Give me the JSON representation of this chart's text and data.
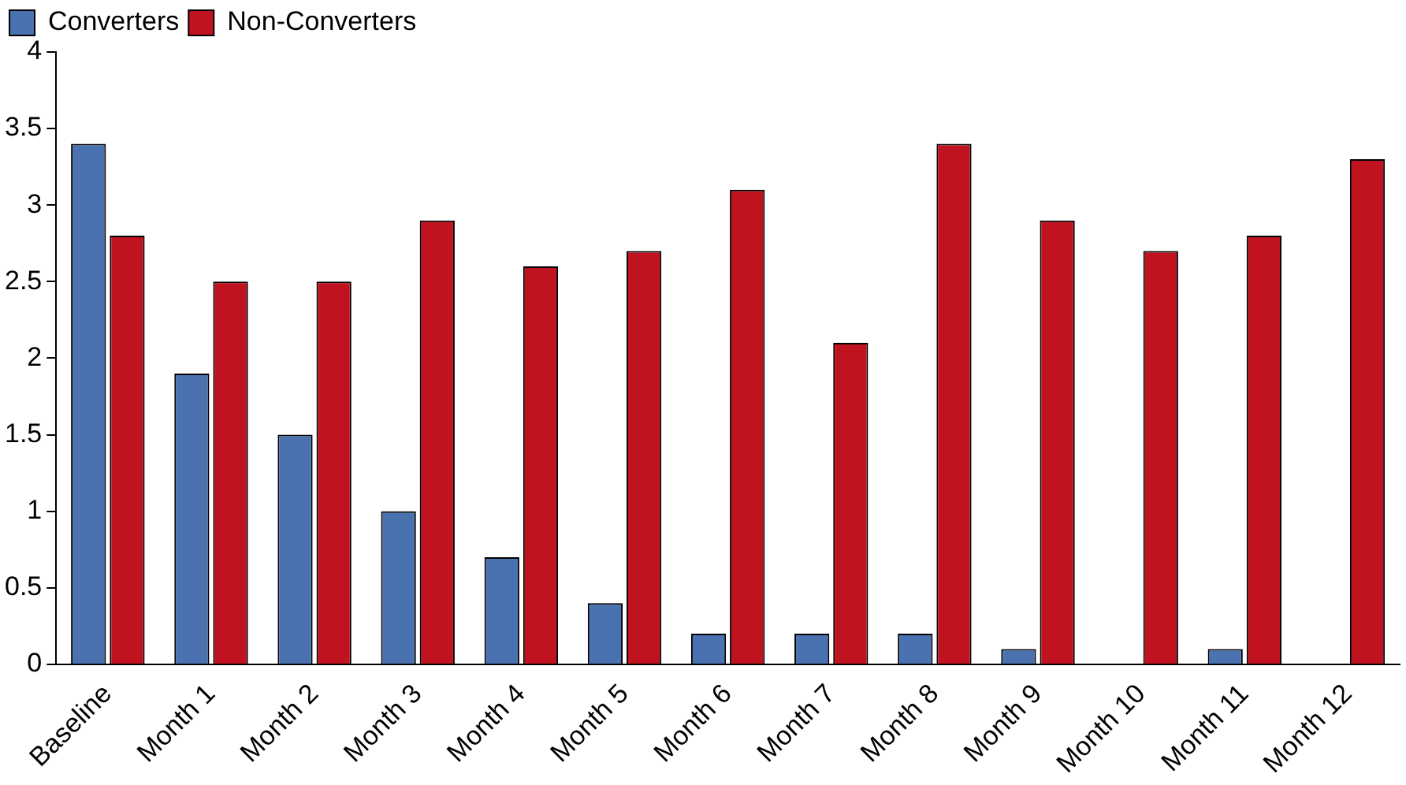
{
  "chart_data": {
    "type": "bar",
    "categories": [
      "Baseline",
      "Month 1",
      "Month 2",
      "Month 3",
      "Month 4",
      "Month 5",
      "Month 6",
      "Month 7",
      "Month 8",
      "Month 9",
      "Month 10",
      "Month 11",
      "Month 12"
    ],
    "series": [
      {
        "name": "Converters",
        "color": "#4a72b0",
        "values": [
          3.4,
          1.9,
          1.5,
          1.0,
          0.7,
          0.4,
          0.2,
          0.2,
          0.2,
          0.1,
          0,
          0.1,
          0
        ]
      },
      {
        "name": "Non-Converters",
        "color": "#c0121f",
        "values": [
          2.8,
          2.5,
          2.5,
          2.9,
          2.6,
          2.7,
          3.1,
          2.1,
          3.4,
          2.9,
          2.7,
          2.8,
          3.3
        ]
      }
    ],
    "ylim": [
      0,
      4
    ],
    "yticks": [
      0,
      0.5,
      1,
      1.5,
      2,
      2.5,
      3,
      3.5,
      4
    ],
    "grid": false,
    "legend": "top left"
  }
}
